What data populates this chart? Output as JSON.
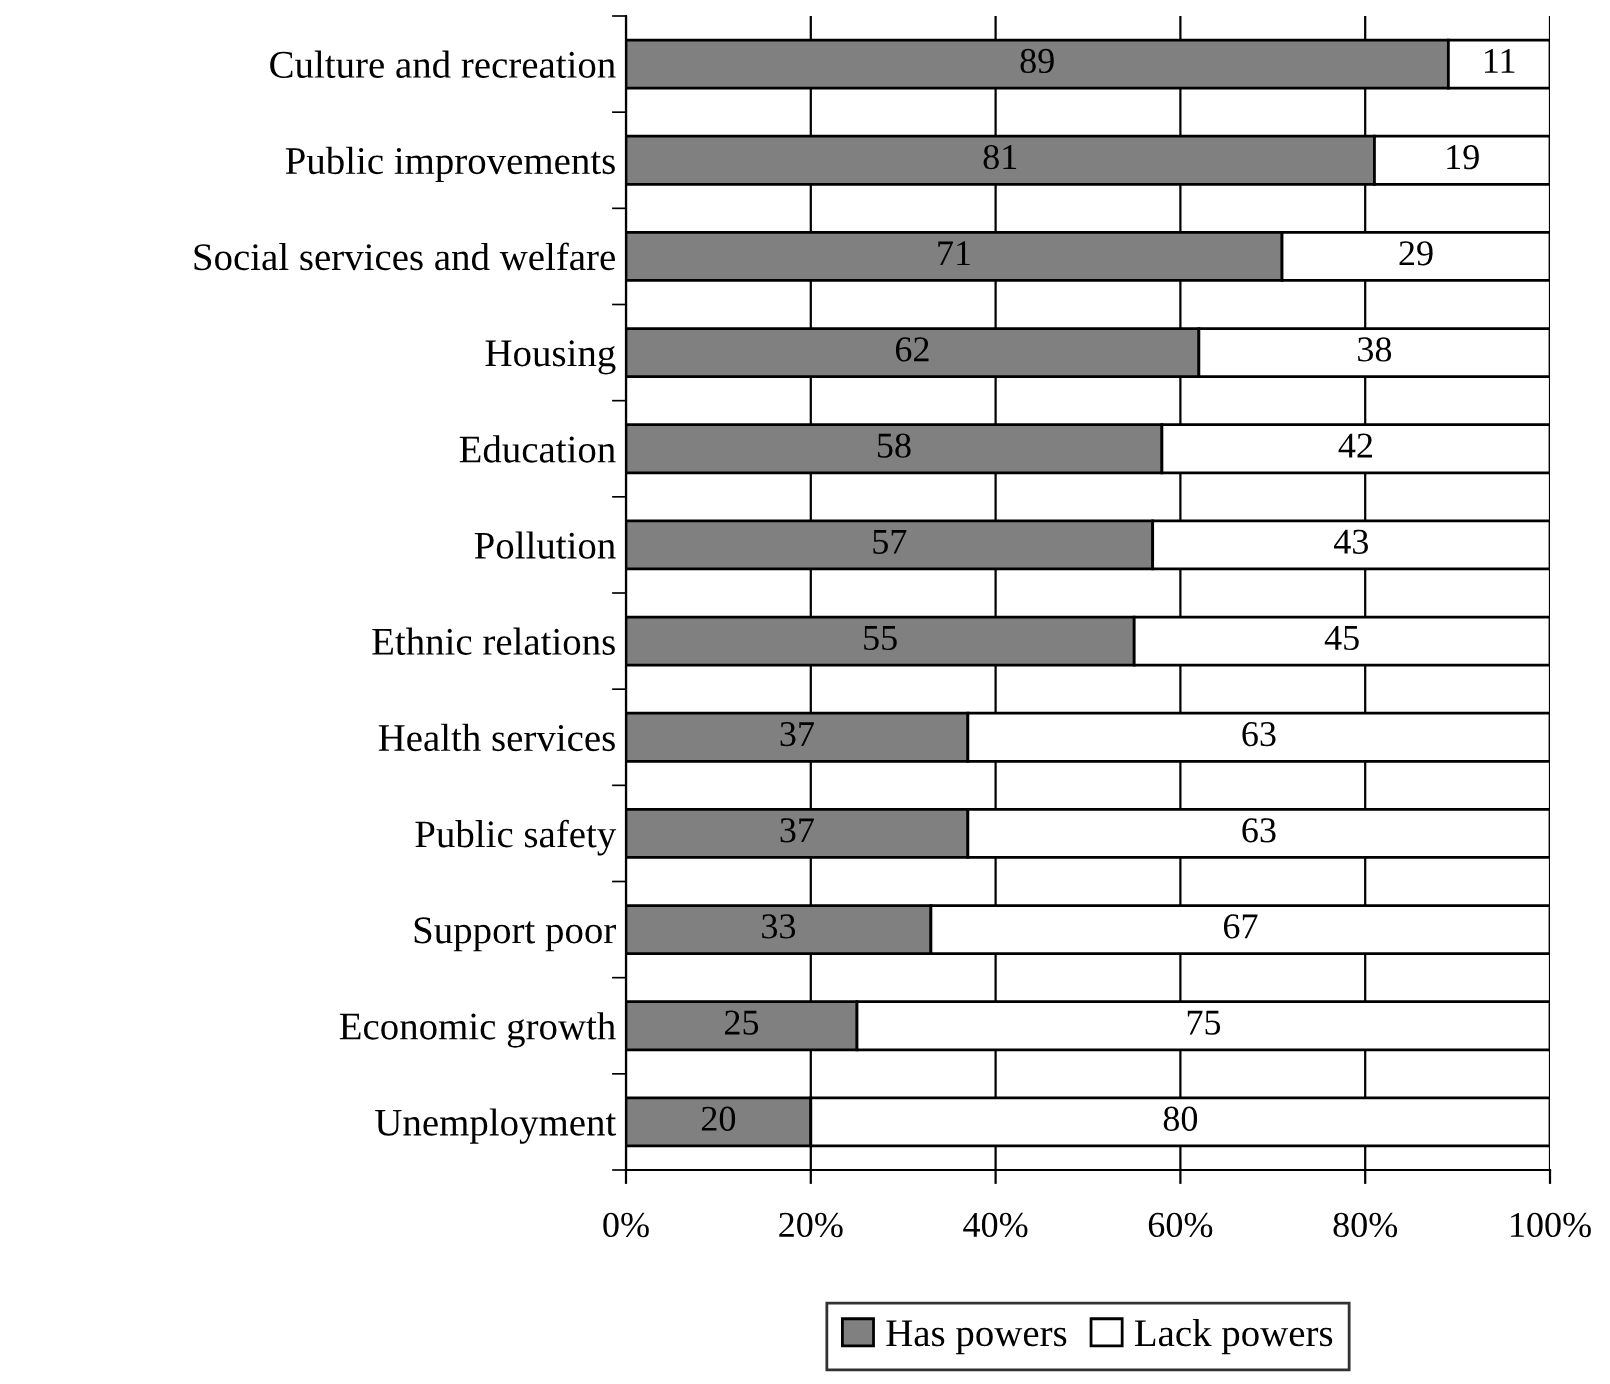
{
  "chart_data": {
    "type": "bar",
    "orientation": "horizontal",
    "stacked": true,
    "categories": [
      "Culture and recreation",
      "Public improvements",
      "Social services and welfare",
      "Housing",
      "Education",
      "Pollution",
      "Ethnic relations",
      "Health services",
      "Public safety",
      "Support poor",
      "Economic growth",
      "Unemployment"
    ],
    "series": [
      {
        "name": "Has powers",
        "color": "#808080",
        "values": [
          89,
          81,
          71,
          62,
          58,
          57,
          55,
          37,
          37,
          33,
          25,
          20
        ]
      },
      {
        "name": "Lack powers",
        "color": "#ffffff",
        "values": [
          11,
          19,
          29,
          38,
          42,
          43,
          45,
          63,
          63,
          67,
          75,
          80
        ]
      }
    ],
    "xlim": [
      0,
      100
    ],
    "xticks": [
      {
        "value": 0,
        "label": "0%"
      },
      {
        "value": 20,
        "label": "20%"
      },
      {
        "value": 40,
        "label": "40%"
      },
      {
        "value": 60,
        "label": "60%"
      },
      {
        "value": 80,
        "label": "80%"
      },
      {
        "value": 100,
        "label": "100%"
      }
    ],
    "grid": "x",
    "legend": "bottom",
    "data_labels": true
  }
}
